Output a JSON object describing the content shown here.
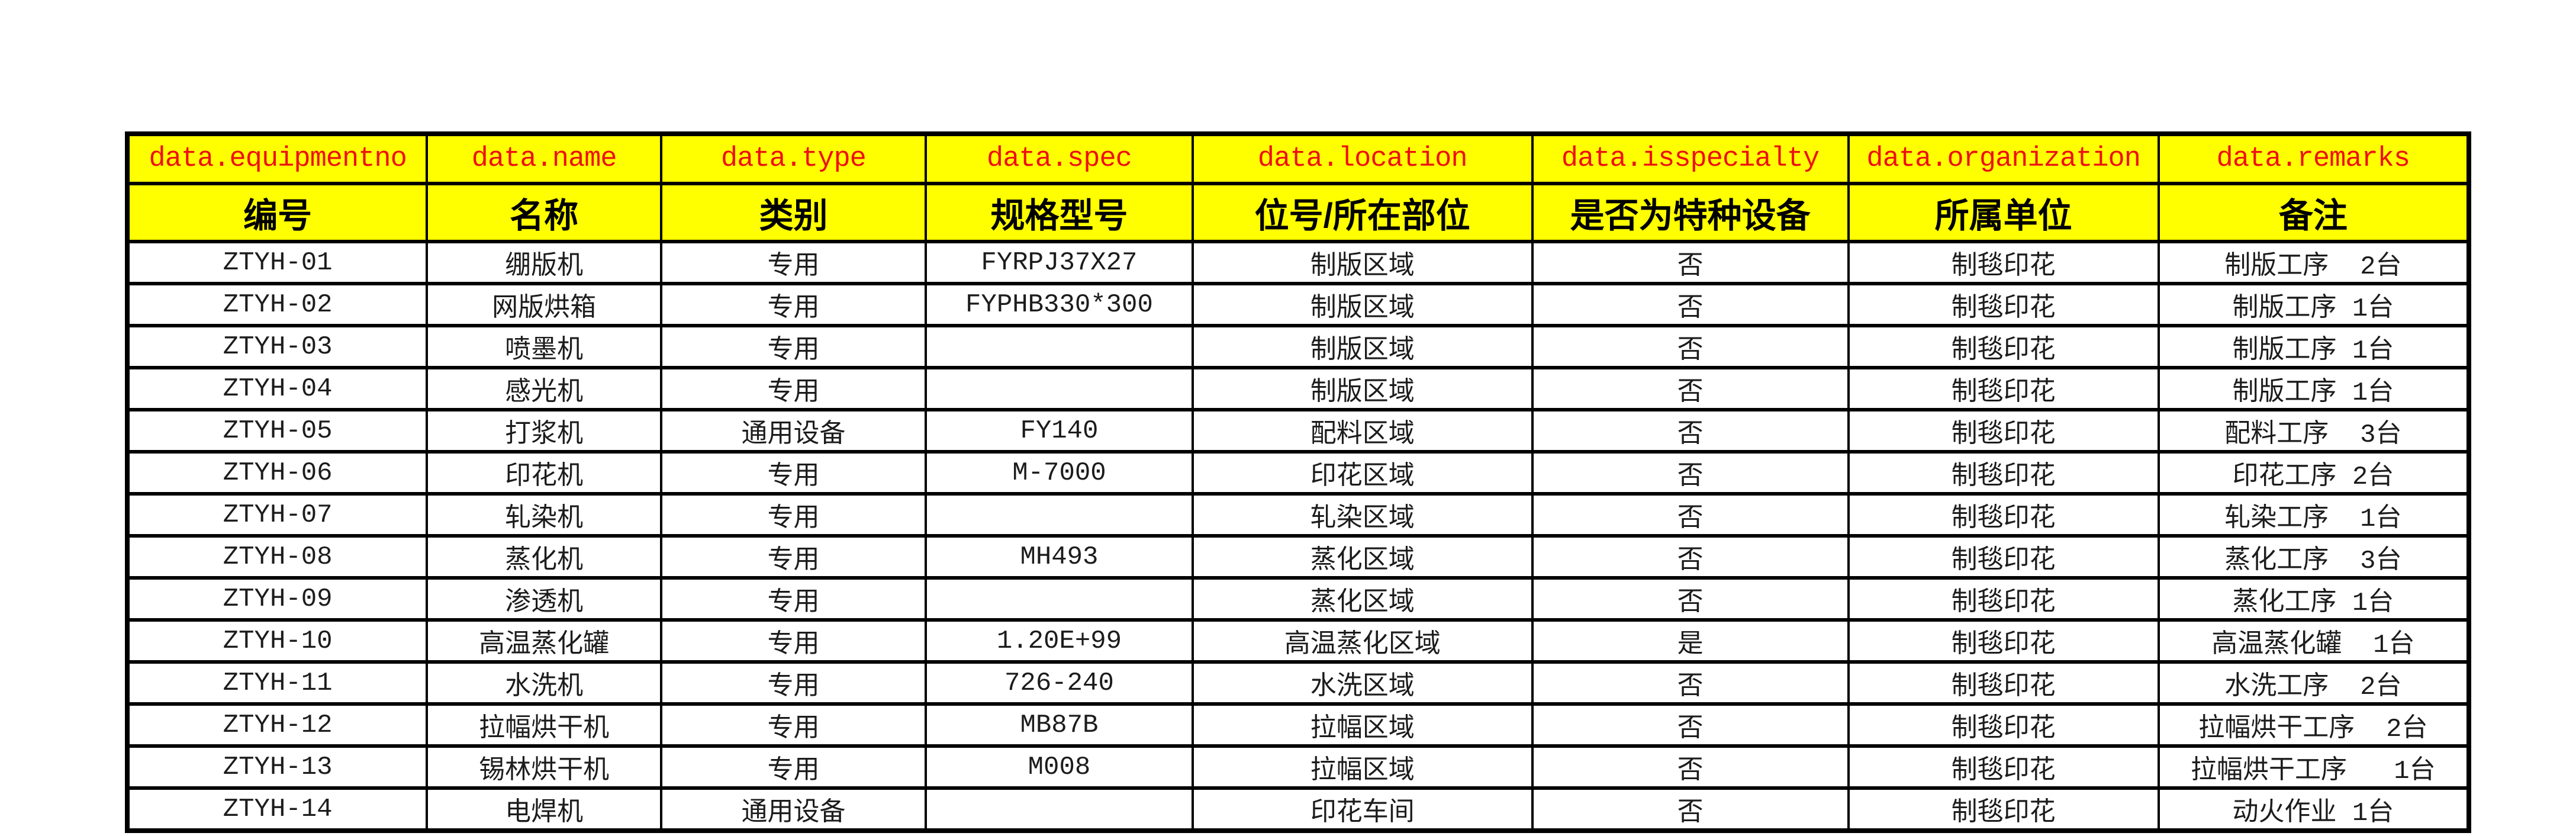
{
  "page": {
    "background_color": "#ffffff"
  },
  "table": {
    "header_background": "#ffff00",
    "key_text_color": "#ee1111",
    "label_text_color": "#000000",
    "border_color": "#000000",
    "columns": [
      {
        "key": "data.equipmentno",
        "label": "编号",
        "width_pct": 12.8
      },
      {
        "key": "data.name",
        "label": "名称",
        "width_pct": 10.0
      },
      {
        "key": "data.type",
        "label": "类别",
        "width_pct": 11.3
      },
      {
        "key": "data.spec",
        "label": "规格型号",
        "width_pct": 11.4
      },
      {
        "key": "data.location",
        "label": "位号/所在部位",
        "width_pct": 14.5
      },
      {
        "key": "data.isspecialty",
        "label": "是否为特种设备",
        "width_pct": 13.5
      },
      {
        "key": "data.organization",
        "label": "所属单位",
        "width_pct": 13.25
      },
      {
        "key": "data.remarks",
        "label": "备注",
        "width_pct": 13.25
      }
    ],
    "rows": [
      [
        "ZTYH-01",
        "绷版机",
        "专用",
        "FYRPJ37X27",
        "制版区域",
        "否",
        "制毯印花",
        "制版工序  2台"
      ],
      [
        "ZTYH-02",
        "网版烘箱",
        "专用",
        "FYPHB330*300",
        "制版区域",
        "否",
        "制毯印花",
        "制版工序 1台"
      ],
      [
        "ZTYH-03",
        "喷墨机",
        "专用",
        "",
        "制版区域",
        "否",
        "制毯印花",
        "制版工序 1台"
      ],
      [
        "ZTYH-04",
        "感光机",
        "专用",
        "",
        "制版区域",
        "否",
        "制毯印花",
        "制版工序 1台"
      ],
      [
        "ZTYH-05",
        "打浆机",
        "通用设备",
        "FY140",
        "配料区域",
        "否",
        "制毯印花",
        "配料工序  3台"
      ],
      [
        "ZTYH-06",
        "印花机",
        "专用",
        "M-7000",
        "印花区域",
        "否",
        "制毯印花",
        "印花工序 2台"
      ],
      [
        "ZTYH-07",
        "轧染机",
        "专用",
        "",
        "轧染区域",
        "否",
        "制毯印花",
        "轧染工序  1台"
      ],
      [
        "ZTYH-08",
        "蒸化机",
        "专用",
        "MH493",
        "蒸化区域",
        "否",
        "制毯印花",
        "蒸化工序  3台"
      ],
      [
        "ZTYH-09",
        "渗透机",
        "专用",
        "",
        "蒸化区域",
        "否",
        "制毯印花",
        "蒸化工序 1台"
      ],
      [
        "ZTYH-10",
        "高温蒸化罐",
        "专用",
        "1.20E+99",
        "高温蒸化区域",
        "是",
        "制毯印花",
        "高温蒸化罐  1台"
      ],
      [
        "ZTYH-11",
        "水洗机",
        "专用",
        "726-240",
        "水洗区域",
        "否",
        "制毯印花",
        "水洗工序  2台"
      ],
      [
        "ZTYH-12",
        "拉幅烘干机",
        "专用",
        "MB87B",
        "拉幅区域",
        "否",
        "制毯印花",
        "拉幅烘干工序  2台"
      ],
      [
        "ZTYH-13",
        "锡林烘干机",
        "专用",
        "M008",
        "拉幅区域",
        "否",
        "制毯印花",
        "拉幅烘干工序   1台"
      ],
      [
        "ZTYH-14",
        "电焊机",
        "通用设备",
        "",
        "印花车间",
        "否",
        "制毯印花",
        "动火作业 1台"
      ]
    ]
  }
}
